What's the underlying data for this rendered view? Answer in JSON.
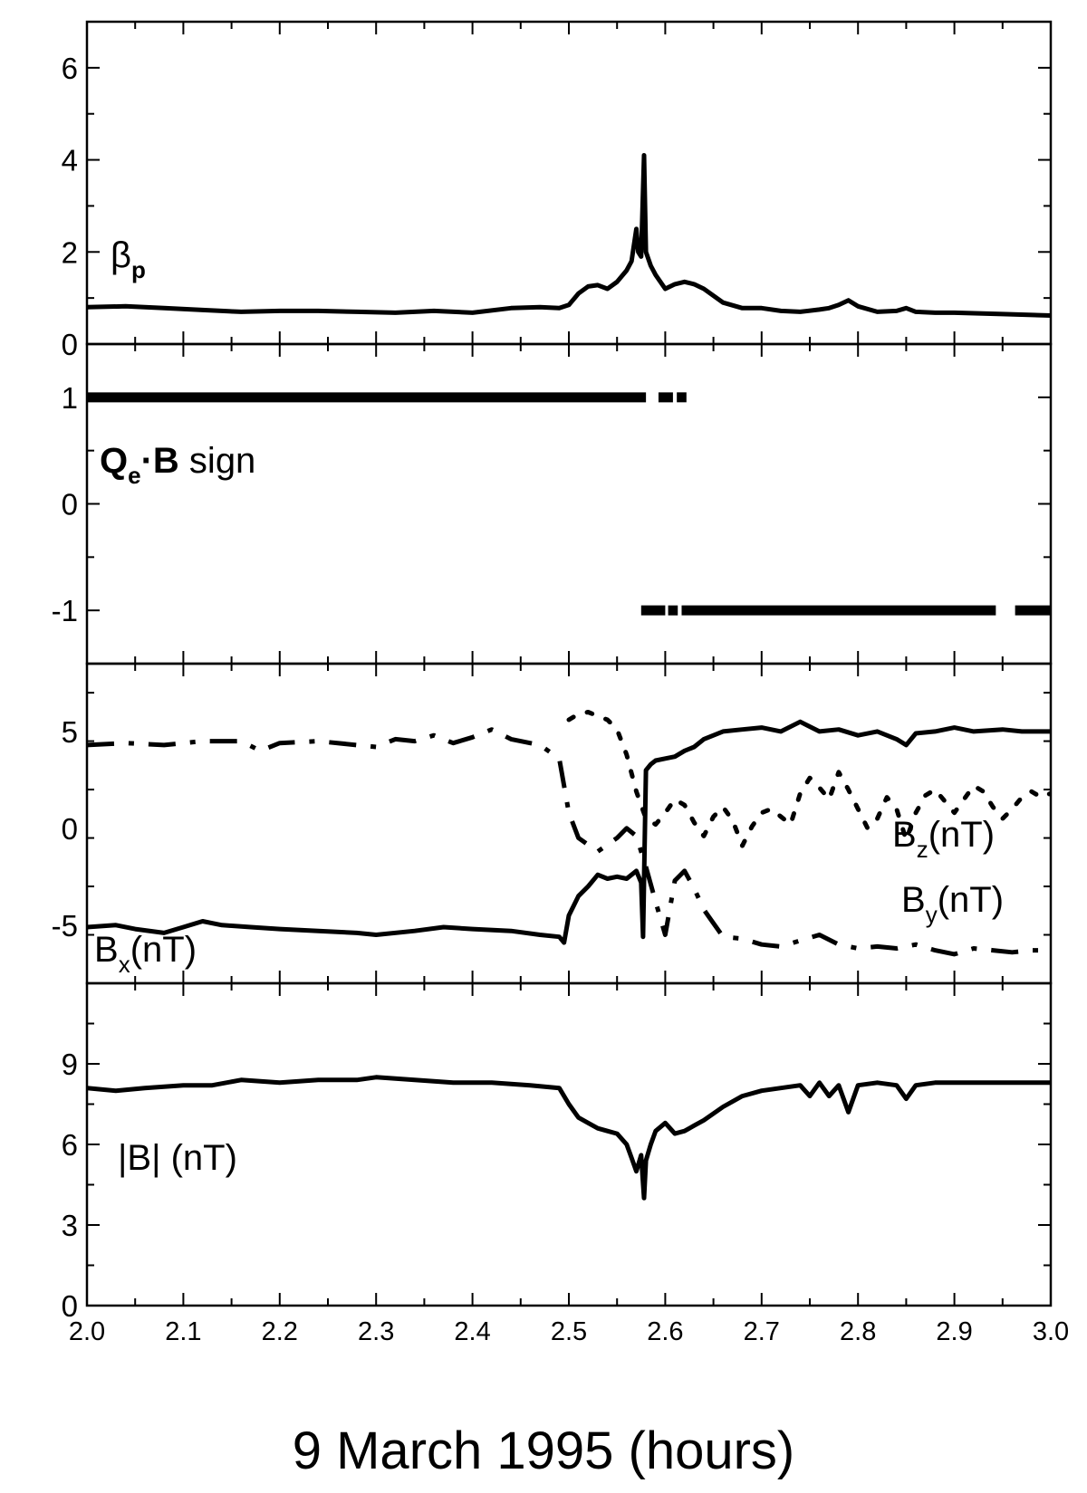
{
  "chart_data": [
    {
      "type": "line",
      "panel": "beta",
      "ylim": [
        0,
        7
      ],
      "yticks": [
        0,
        2,
        4,
        6
      ],
      "labels": [
        {
          "main": "β",
          "sub": "p"
        }
      ],
      "series": [
        {
          "style": "solid",
          "x": [
            2.0,
            2.04,
            2.08,
            2.12,
            2.16,
            2.2,
            2.24,
            2.28,
            2.32,
            2.36,
            2.4,
            2.44,
            2.47,
            2.49,
            2.5,
            2.51,
            2.52,
            2.53,
            2.54,
            2.55,
            2.56,
            2.565,
            2.57,
            2.572,
            2.575,
            2.578,
            2.58,
            2.585,
            2.59,
            2.6,
            2.61,
            2.62,
            2.63,
            2.64,
            2.66,
            2.68,
            2.7,
            2.72,
            2.74,
            2.76,
            2.77,
            2.78,
            2.79,
            2.8,
            2.82,
            2.84,
            2.85,
            2.86,
            2.88,
            2.9,
            2.95,
            3.0
          ],
          "y": [
            0.8,
            0.82,
            0.78,
            0.74,
            0.7,
            0.72,
            0.72,
            0.7,
            0.68,
            0.72,
            0.68,
            0.78,
            0.8,
            0.78,
            0.85,
            1.1,
            1.25,
            1.28,
            1.2,
            1.35,
            1.6,
            1.8,
            2.5,
            2.0,
            1.9,
            4.1,
            2.0,
            1.7,
            1.5,
            1.2,
            1.3,
            1.35,
            1.3,
            1.2,
            0.9,
            0.78,
            0.78,
            0.72,
            0.7,
            0.75,
            0.78,
            0.85,
            0.95,
            0.82,
            0.7,
            0.72,
            0.78,
            0.7,
            0.68,
            0.68,
            0.65,
            0.62
          ]
        }
      ]
    },
    {
      "type": "scatter",
      "panel": "sign",
      "ylim": [
        -1.5,
        1.5
      ],
      "yticks": [
        -1,
        0,
        1
      ],
      "labels": [
        {
          "main": "Q",
          "sub": "e",
          "rest": "·B",
          "tail": " sign"
        }
      ],
      "segments": [
        {
          "y": 1,
          "x": [
            2.0,
            2.58
          ]
        },
        {
          "y": 1,
          "x": [
            2.593,
            2.608
          ]
        },
        {
          "y": 1,
          "x": [
            2.612,
            2.622
          ]
        },
        {
          "y": -1,
          "x": [
            2.575,
            2.6
          ]
        },
        {
          "y": -1,
          "x": [
            2.603,
            2.613
          ]
        },
        {
          "y": -1,
          "x": [
            2.617,
            2.943
          ]
        },
        {
          "y": -1,
          "x": [
            2.963,
            3.0
          ]
        }
      ]
    },
    {
      "type": "line",
      "panel": "components",
      "ylim": [
        -8,
        8.5
      ],
      "yticks": [
        -5,
        0,
        5
      ],
      "labels": [
        {
          "main": "B",
          "sub": "x",
          "rest": "(nT)"
        },
        {
          "main": "B",
          "sub": "z",
          "rest": "(nT)"
        },
        {
          "main": "B",
          "sub": "y",
          "rest": "(nT)"
        }
      ],
      "series": [
        {
          "style": "solid",
          "x": [
            2.0,
            2.03,
            2.05,
            2.08,
            2.1,
            2.12,
            2.14,
            2.17,
            2.2,
            2.24,
            2.28,
            2.3,
            2.34,
            2.37,
            2.4,
            2.44,
            2.47,
            2.49,
            2.495,
            2.5,
            2.51,
            2.52,
            2.53,
            2.54,
            2.55,
            2.56,
            2.57,
            2.575,
            2.577,
            2.58,
            2.585,
            2.59,
            2.6,
            2.61,
            2.62,
            2.63,
            2.64,
            2.66,
            2.68,
            2.7,
            2.72,
            2.74,
            2.76,
            2.78,
            2.8,
            2.82,
            2.84,
            2.85,
            2.86,
            2.88,
            2.9,
            2.92,
            2.95,
            2.97,
            3.0
          ],
          "y": [
            -5.1,
            -5.0,
            -5.2,
            -5.4,
            -5.1,
            -4.8,
            -5.0,
            -5.1,
            -5.2,
            -5.3,
            -5.4,
            -5.5,
            -5.3,
            -5.1,
            -5.2,
            -5.3,
            -5.5,
            -5.6,
            -5.9,
            -4.5,
            -3.5,
            -3.0,
            -2.4,
            -2.6,
            -2.5,
            -2.6,
            -2.2,
            -2.8,
            -5.6,
            3.0,
            3.3,
            3.5,
            3.6,
            3.7,
            4.0,
            4.2,
            4.6,
            5.0,
            5.1,
            5.2,
            5.0,
            5.5,
            5.0,
            5.1,
            4.8,
            5.0,
            4.6,
            4.3,
            4.9,
            5.0,
            5.2,
            5.0,
            5.1,
            5.0,
            5.0
          ]
        },
        {
          "style": "dashdot",
          "x": [
            2.0,
            2.04,
            2.08,
            2.12,
            2.16,
            2.18,
            2.2,
            2.24,
            2.28,
            2.3,
            2.32,
            2.34,
            2.36,
            2.38,
            2.4,
            2.42,
            2.44,
            2.47,
            2.49,
            2.5,
            2.51,
            2.53,
            2.55,
            2.56,
            2.57,
            2.58,
            2.59,
            2.6,
            2.61,
            2.62,
            2.63,
            2.64,
            2.66,
            2.68,
            2.7,
            2.72,
            2.74,
            2.76,
            2.78,
            2.8,
            2.82,
            2.84,
            2.86,
            2.88,
            2.9,
            2.92,
            2.94,
            2.96,
            2.98,
            3.0
          ],
          "y": [
            4.3,
            4.4,
            4.3,
            4.5,
            4.5,
            4.0,
            4.4,
            4.5,
            4.3,
            4.2,
            4.6,
            4.5,
            4.8,
            4.4,
            4.7,
            5.1,
            4.6,
            4.3,
            3.6,
            0.8,
            -0.5,
            -1.2,
            -0.5,
            0.0,
            -0.4,
            -2.0,
            -3.8,
            -5.5,
            -2.7,
            -2.2,
            -3.1,
            -4.2,
            -5.6,
            -5.7,
            -6.0,
            -6.1,
            -5.8,
            -5.5,
            -6.0,
            -6.2,
            -6.1,
            -6.2,
            -6.0,
            -6.3,
            -6.5,
            -6.2,
            -6.3,
            -6.4,
            -6.3,
            -6.3
          ]
        },
        {
          "style": "dot",
          "x": [
            2.5,
            2.51,
            2.52,
            2.53,
            2.54,
            2.55,
            2.56,
            2.57,
            2.58,
            2.59,
            2.6,
            2.61,
            2.62,
            2.63,
            2.64,
            2.65,
            2.66,
            2.67,
            2.68,
            2.69,
            2.7,
            2.71,
            2.72,
            2.73,
            2.74,
            2.75,
            2.76,
            2.77,
            2.78,
            2.79,
            2.8,
            2.81,
            2.82,
            2.83,
            2.84,
            2.85,
            2.86,
            2.87,
            2.88,
            2.89,
            2.9,
            2.91,
            2.92,
            2.93,
            2.94,
            2.95,
            2.96,
            2.97,
            2.98,
            2.99,
            3.0
          ],
          "y": [
            5.6,
            5.9,
            6.0,
            5.8,
            5.6,
            5.1,
            3.8,
            1.9,
            0.5,
            0.2,
            0.8,
            1.5,
            1.2,
            0.3,
            -0.4,
            0.6,
            1.1,
            0.4,
            -0.9,
            0.1,
            0.8,
            1.0,
            0.6,
            0.2,
            1.8,
            2.6,
            2.1,
            1.5,
            2.9,
            2.0,
            1.0,
            0.0,
            0.5,
            1.6,
            1.0,
            -0.6,
            0.8,
            1.7,
            2.0,
            1.4,
            0.8,
            1.5,
            2.2,
            1.9,
            1.1,
            0.5,
            1.0,
            1.6,
            1.9,
            1.6,
            1.8
          ]
        }
      ]
    },
    {
      "type": "line",
      "panel": "magnitude",
      "ylim": [
        0,
        12
      ],
      "yticks": [
        0,
        3,
        6,
        9
      ],
      "labels": [
        {
          "main": "|B| (nT)"
        }
      ],
      "series": [
        {
          "style": "solid",
          "x": [
            2.0,
            2.03,
            2.06,
            2.1,
            2.13,
            2.16,
            2.2,
            2.24,
            2.28,
            2.3,
            2.34,
            2.38,
            2.42,
            2.46,
            2.49,
            2.5,
            2.51,
            2.52,
            2.53,
            2.54,
            2.55,
            2.56,
            2.565,
            2.57,
            2.575,
            2.578,
            2.58,
            2.585,
            2.59,
            2.6,
            2.61,
            2.62,
            2.63,
            2.64,
            2.66,
            2.68,
            2.7,
            2.72,
            2.74,
            2.75,
            2.76,
            2.77,
            2.78,
            2.79,
            2.8,
            2.82,
            2.84,
            2.85,
            2.86,
            2.88,
            2.9,
            2.95,
            3.0
          ],
          "y": [
            8.1,
            8.0,
            8.1,
            8.2,
            8.2,
            8.4,
            8.3,
            8.4,
            8.4,
            8.5,
            8.4,
            8.3,
            8.3,
            8.2,
            8.1,
            7.5,
            7.0,
            6.8,
            6.6,
            6.5,
            6.4,
            6.0,
            5.5,
            5.0,
            5.6,
            4.0,
            5.4,
            6.0,
            6.5,
            6.8,
            6.4,
            6.5,
            6.7,
            6.9,
            7.4,
            7.8,
            8.0,
            8.1,
            8.2,
            7.8,
            8.3,
            7.8,
            8.2,
            7.2,
            8.2,
            8.3,
            8.2,
            7.7,
            8.2,
            8.3,
            8.3,
            8.3,
            8.3
          ]
        }
      ]
    }
  ],
  "x_axis": {
    "xlim": [
      2.0,
      3.0
    ],
    "ticks": [
      "2.0",
      "2.1",
      "2.2",
      "2.3",
      "2.4",
      "2.5",
      "2.6",
      "2.7",
      "2.8",
      "2.9",
      "3.0"
    ],
    "title": "9 March 1995 (hours)"
  }
}
